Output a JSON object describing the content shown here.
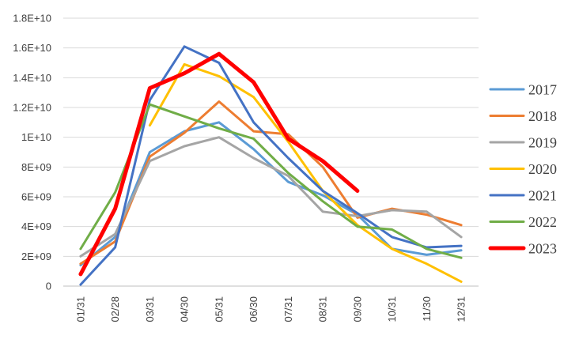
{
  "chart_data": {
    "type": "line",
    "title": "",
    "xlabel": "",
    "ylabel": "",
    "categories": [
      "01/31",
      "02/28",
      "03/31",
      "04/30",
      "05/31",
      "06/30",
      "07/31",
      "08/31",
      "09/30",
      "10/31",
      "11/30",
      "12/31"
    ],
    "y_ticks": [
      "0",
      "2E+09",
      "4E+09",
      "6E+09",
      "8E+09",
      "1E+10",
      "1.2E+10",
      "1.4E+10",
      "1.6E+10",
      "1.8E+10"
    ],
    "ylim": [
      0,
      18000000000
    ],
    "grid": true,
    "legend_position": "right",
    "series": [
      {
        "name": "2017",
        "color": "#5B9BD5",
        "width": 3,
        "values": [
          1400000000,
          3300000000,
          9000000000,
          10400000000,
          11000000000,
          9200000000,
          7000000000,
          6100000000,
          4800000000,
          2500000000,
          2100000000,
          2400000000
        ]
      },
      {
        "name": "2018",
        "color": "#ED7D31",
        "width": 3,
        "values": [
          1500000000,
          3000000000,
          8700000000,
          10300000000,
          12400000000,
          10400000000,
          10200000000,
          8000000000,
          4600000000,
          5200000000,
          4800000000,
          4100000000
        ]
      },
      {
        "name": "2019",
        "color": "#A5A5A5",
        "width": 3,
        "values": [
          2000000000,
          3500000000,
          8400000000,
          9400000000,
          10000000000,
          8600000000,
          7400000000,
          5000000000,
          4700000000,
          5100000000,
          5000000000,
          3300000000
        ]
      },
      {
        "name": "2020",
        "color": "#FFC000",
        "width": 3,
        "values": [
          null,
          null,
          10800000000,
          14900000000,
          14100000000,
          12700000000,
          9700000000,
          6400000000,
          4100000000,
          2500000000,
          1500000000,
          300000000
        ]
      },
      {
        "name": "2021",
        "color": "#4472C4",
        "width": 3,
        "values": [
          100000000,
          2600000000,
          12500000000,
          16100000000,
          15000000000,
          11000000000,
          8600000000,
          6400000000,
          4900000000,
          3300000000,
          2600000000,
          2700000000
        ]
      },
      {
        "name": "2022",
        "color": "#70AD47",
        "width": 3,
        "values": [
          2500000000,
          6300000000,
          12200000000,
          11400000000,
          10600000000,
          9900000000,
          7600000000,
          5700000000,
          4000000000,
          3800000000,
          2500000000,
          1900000000
        ]
      },
      {
        "name": "2023",
        "color": "#FF0000",
        "width": 5,
        "values": [
          800000000,
          5200000000,
          13300000000,
          14300000000,
          15600000000,
          13700000000,
          9900000000,
          8400000000,
          6400000000,
          null,
          null,
          null
        ]
      }
    ]
  }
}
